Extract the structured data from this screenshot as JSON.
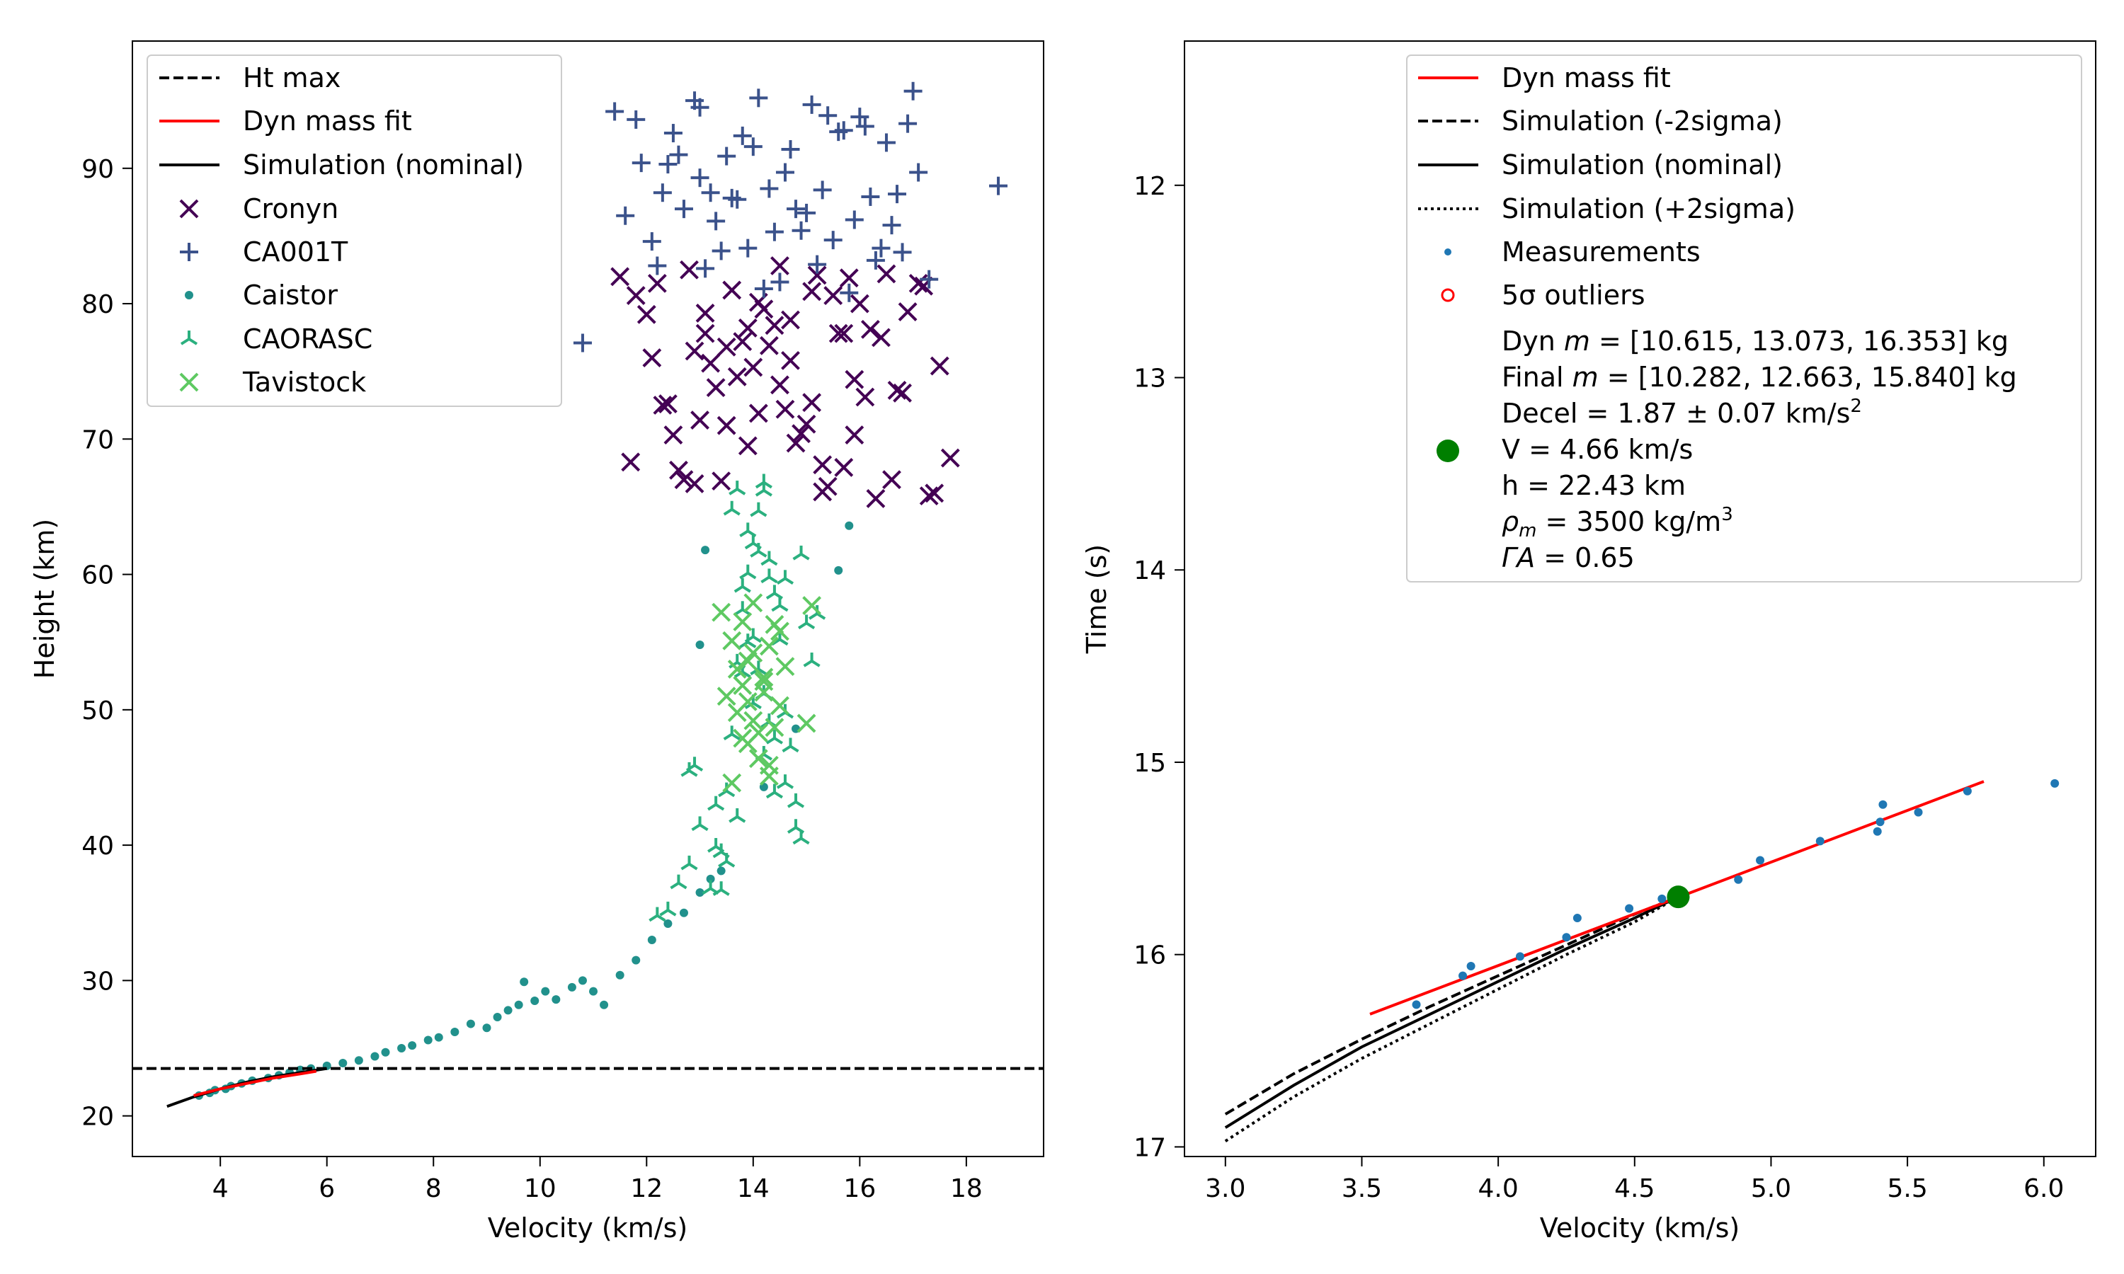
{
  "chart_data": [
    {
      "type": "scatter",
      "xlabel": "Velocity (km/s)",
      "ylabel": "Height (km)",
      "xlim": [
        2.35,
        19.45
      ],
      "ylim": [
        17.0,
        99.4
      ],
      "xticks": [
        4,
        6,
        8,
        10,
        12,
        14,
        16,
        18
      ],
      "yticks": [
        20,
        30,
        40,
        50,
        60,
        70,
        80,
        90
      ],
      "legend_position": "upper-left",
      "legend": [
        {
          "label": "Ht max",
          "kind": "dashed-line",
          "color": "#000000"
        },
        {
          "label": "Dyn mass fit",
          "kind": "line",
          "color": "#ff0000"
        },
        {
          "label": "Simulation (nominal)",
          "kind": "line",
          "color": "#000000"
        },
        {
          "label": "Cronyn",
          "kind": "x",
          "color": "#440154"
        },
        {
          "label": "CA001T",
          "kind": "plus",
          "color": "#3b528b"
        },
        {
          "label": "Caistor",
          "kind": "dot",
          "color": "#21918c"
        },
        {
          "label": "CAORASC",
          "kind": "tri",
          "color": "#2bb07f"
        },
        {
          "label": "Tavistock",
          "kind": "x",
          "color": "#5ec962"
        }
      ],
      "ht_max": 23.5,
      "dyn_mass_fit": {
        "x": [
          3.5,
          4.0,
          4.5,
          5.0,
          5.5,
          5.8
        ],
        "y": [
          21.5,
          22.0,
          22.4,
          22.8,
          23.1,
          23.3
        ]
      },
      "simulation_nominal": {
        "x": [
          3.0,
          3.5,
          4.0,
          4.5,
          5.0,
          5.5,
          6.0
        ],
        "y": [
          20.7,
          21.4,
          22.0,
          22.5,
          22.9,
          23.2,
          23.5
        ]
      },
      "series": [
        {
          "name": "Caistor",
          "x": [
            3.6,
            3.8,
            3.9,
            4.1,
            4.2,
            4.4,
            4.6,
            4.9,
            5.1,
            5.3,
            5.5,
            5.7,
            6.0,
            6.3,
            6.6,
            6.9,
            7.1,
            7.4,
            7.6,
            7.9,
            8.1,
            8.4,
            8.7,
            9.0,
            9.2,
            9.4,
            9.6,
            9.7,
            9.9,
            10.1,
            10.3,
            10.6,
            10.8,
            11.0,
            11.2,
            11.5,
            11.8,
            12.1,
            12.4,
            12.7,
            13.0,
            13.2,
            13.4,
            13.0,
            13.1,
            14.2,
            14.8,
            15.6,
            15.8
          ],
          "y": [
            21.5,
            21.7,
            21.9,
            22.0,
            22.2,
            22.4,
            22.6,
            22.8,
            23.0,
            23.2,
            23.4,
            23.5,
            23.7,
            23.9,
            24.1,
            24.4,
            24.7,
            25.0,
            25.2,
            25.6,
            25.8,
            26.2,
            26.8,
            26.5,
            27.3,
            27.8,
            28.2,
            29.9,
            28.5,
            29.2,
            28.6,
            29.5,
            30.0,
            29.2,
            28.2,
            30.4,
            31.5,
            33.0,
            34.2,
            35.0,
            36.5,
            37.5,
            38.1,
            54.8,
            61.8,
            44.3,
            48.6,
            60.3,
            63.6
          ]
        },
        {
          "name": "CAORASC",
          "x": [
            12.2,
            12.4,
            12.6,
            12.8,
            12.9,
            13.0,
            13.2,
            13.3,
            13.4,
            13.5,
            13.6,
            13.7,
            13.8,
            13.9,
            14.0,
            14.1,
            14.2,
            14.3,
            14.4,
            14.5,
            14.6,
            14.7,
            14.8,
            14.9,
            15.0,
            13.6,
            13.8,
            14.0,
            14.2,
            14.4,
            14.6,
            14.8,
            13.7,
            13.9,
            14.1,
            14.3,
            14.5,
            13.8,
            14.0,
            14.2,
            14.4,
            13.9,
            14.1,
            14.3,
            15.2,
            13.5,
            13.7,
            14.9,
            12.8,
            13.3,
            14.6,
            15.1,
            13.4,
            14.2
          ],
          "y": [
            34.8,
            35.2,
            37.2,
            38.6,
            45.9,
            41.5,
            36.8,
            43.0,
            39.5,
            44.0,
            48.2,
            53.5,
            57.4,
            60.1,
            62.3,
            64.7,
            66.2,
            61.1,
            58.6,
            55.2,
            49.8,
            47.3,
            43.2,
            40.5,
            56.4,
            64.8,
            59.1,
            55.4,
            51.2,
            47.9,
            44.6,
            41.3,
            66.3,
            63.2,
            61.7,
            59.8,
            57.7,
            52.8,
            50.5,
            46.7,
            43.9,
            55.0,
            53.0,
            49.1,
            57.1,
            38.8,
            42.1,
            61.5,
            45.5,
            39.9,
            59.7,
            53.6,
            36.7,
            66.8
          ]
        },
        {
          "name": "Tavistock",
          "x": [
            13.4,
            13.6,
            13.7,
            13.8,
            13.9,
            14.0,
            14.1,
            14.2,
            14.3,
            14.4,
            14.5,
            14.6,
            13.5,
            13.7,
            13.9,
            14.1,
            14.3,
            14.5,
            13.6,
            13.8,
            14.0,
            14.2,
            14.4,
            13.8,
            14.0,
            14.2,
            15.0,
            15.1,
            13.9,
            14.3
          ],
          "y": [
            57.2,
            55.1,
            53.0,
            51.8,
            50.6,
            49.2,
            48.3,
            52.4,
            54.7,
            56.3,
            55.8,
            53.2,
            51.0,
            49.8,
            47.5,
            46.4,
            45.1,
            50.3,
            44.6,
            47.9,
            54.2,
            52.1,
            48.7,
            56.5,
            57.9,
            51.3,
            49.0,
            57.7,
            53.6,
            45.9
          ]
        },
        {
          "name": "Cronyn",
          "x": [
            11.5,
            11.8,
            12.1,
            12.3,
            12.5,
            12.7,
            12.9,
            13.1,
            13.3,
            13.5,
            13.7,
            13.9,
            14.1,
            14.3,
            14.5,
            14.7,
            14.9,
            15.1,
            15.3,
            15.5,
            15.7,
            15.9,
            16.1,
            16.3,
            16.5,
            16.7,
            16.9,
            17.1,
            17.3,
            17.5,
            17.7,
            11.7,
            12.0,
            12.4,
            12.6,
            12.8,
            13.0,
            13.2,
            13.4,
            13.6,
            13.8,
            14.0,
            14.2,
            14.4,
            14.6,
            14.8,
            15.0,
            15.2,
            15.4,
            15.6,
            15.8,
            16.0,
            16.2,
            16.6,
            16.8,
            17.2,
            17.4,
            12.2,
            12.9,
            13.5,
            14.1,
            14.7,
            15.3,
            15.9,
            16.4,
            13.1,
            13.9,
            14.5,
            15.1,
            15.7
          ],
          "y": [
            82.0,
            80.6,
            76.0,
            72.5,
            70.3,
            67.0,
            76.5,
            79.3,
            73.8,
            71.0,
            74.6,
            78.2,
            80.1,
            76.9,
            74.0,
            78.8,
            70.4,
            72.7,
            68.1,
            80.6,
            77.8,
            70.3,
            73.1,
            65.6,
            82.2,
            73.6,
            79.4,
            81.5,
            65.8,
            75.4,
            68.6,
            68.3,
            79.2,
            72.6,
            67.7,
            82.5,
            71.4,
            75.6,
            66.9,
            81.0,
            77.2,
            75.3,
            79.6,
            78.4,
            72.2,
            69.7,
            71.1,
            82.1,
            66.5,
            77.8,
            81.9,
            80.0,
            78.1,
            67.0,
            73.4,
            81.3,
            66.0,
            81.5,
            66.7,
            76.8,
            71.9,
            75.8,
            66.1,
            74.4,
            77.5,
            77.8,
            69.5,
            82.8,
            80.9,
            67.9
          ]
        },
        {
          "name": "CA001T",
          "x": [
            10.8,
            11.4,
            11.6,
            11.9,
            12.1,
            12.3,
            12.5,
            12.7,
            12.9,
            13.0,
            13.1,
            13.3,
            13.5,
            13.7,
            13.9,
            14.1,
            14.3,
            14.5,
            14.7,
            14.9,
            15.1,
            15.3,
            15.5,
            15.7,
            15.9,
            16.1,
            16.3,
            16.5,
            16.7,
            16.9,
            17.1,
            17.3,
            18.6,
            11.8,
            12.2,
            12.6,
            13.0,
            13.4,
            13.8,
            14.2,
            14.6,
            15.0,
            15.4,
            15.8,
            16.2,
            16.6,
            17.0,
            12.4,
            13.2,
            14.0,
            14.8,
            15.6,
            16.4,
            13.6,
            14.4,
            15.2,
            16.0,
            16.8
          ],
          "y": [
            77.1,
            94.2,
            86.5,
            90.4,
            84.6,
            88.2,
            92.6,
            87.0,
            95.0,
            89.3,
            82.6,
            86.1,
            90.9,
            87.7,
            84.1,
            95.2,
            88.5,
            81.6,
            91.4,
            85.4,
            94.7,
            88.4,
            84.7,
            92.8,
            86.2,
            93.1,
            83.2,
            91.9,
            88.1,
            93.3,
            89.7,
            81.8,
            88.7,
            93.6,
            82.8,
            91.0,
            94.5,
            83.9,
            92.4,
            81.1,
            89.7,
            86.7,
            93.9,
            80.8,
            87.9,
            85.8,
            95.7,
            90.3,
            88.2,
            91.6,
            87.0,
            92.7,
            84.1,
            87.8,
            85.3,
            82.9,
            93.8,
            83.8
          ]
        }
      ]
    },
    {
      "type": "line",
      "xlabel": "Velocity (km/s)",
      "ylabel": "Time (s)",
      "xlim": [
        2.85,
        6.19
      ],
      "ylim": [
        17.05,
        11.25
      ],
      "y_inverted": true,
      "xticks": [
        3.0,
        3.5,
        4.0,
        4.5,
        5.0,
        5.5,
        6.0
      ],
      "xtick_labels": [
        "3.0",
        "3.5",
        "4.0",
        "4.5",
        "5.0",
        "5.5",
        "6.0"
      ],
      "yticks": [
        12,
        13,
        14,
        15,
        16,
        17
      ],
      "legend_position": "upper-right",
      "legend": [
        {
          "label": "Dyn mass fit",
          "kind": "line",
          "color": "#ff0000"
        },
        {
          "label": "Simulation (-2sigma)",
          "kind": "dashed-line",
          "color": "#000000"
        },
        {
          "label": "Simulation (nominal)",
          "kind": "line",
          "color": "#000000"
        },
        {
          "label": "Simulation (+2sigma)",
          "kind": "dotted-line",
          "color": "#000000"
        },
        {
          "label": "Measurements",
          "kind": "dot",
          "color": "#1f77b4"
        },
        {
          "label": "5σ outliers",
          "kind": "ring",
          "color": "#ff0000"
        }
      ],
      "fit_info": {
        "color": "#007f00",
        "v": 4.66,
        "h": 22.43,
        "line1_pre": "Dyn ",
        "line1_var": "m",
        "line1_post": " = [10.615, 13.073, 16.353] kg",
        "line2_pre": "Final ",
        "line2_var": "m",
        "line2_post": " = [10.282, 12.663, 15.840] kg",
        "line3_pre": "Decel = 1.87 ± 0.07 km/s",
        "line3_sup": "2",
        "line4": "V = 4.66 km/s",
        "line5": "h = 22.43 km",
        "line6_var": "ρ",
        "line6_sub": "m",
        "line6_post": " = 3500 kg/m",
        "line6_sup": "3",
        "line7_var": "ΓA",
        "line7_post": " = 0.65"
      },
      "fit_point": {
        "x": 4.66,
        "y": 15.7
      },
      "dyn_mass_fit": {
        "x": [
          3.53,
          5.78
        ],
        "y": [
          16.31,
          15.1
        ]
      },
      "simulation_minus2sigma": {
        "x": [
          3.0,
          3.25,
          3.5,
          3.75,
          4.0,
          4.25,
          4.5,
          4.66
        ],
        "y": [
          16.83,
          16.62,
          16.44,
          16.27,
          16.11,
          15.95,
          15.79,
          15.7
        ]
      },
      "simulation_nominal": {
        "x": [
          3.0,
          3.25,
          3.5,
          3.75,
          4.0,
          4.25,
          4.5,
          4.66
        ],
        "y": [
          16.9,
          16.68,
          16.48,
          16.31,
          16.14,
          15.97,
          15.81,
          15.7
        ]
      },
      "simulation_plus2sigma": {
        "x": [
          3.0,
          3.25,
          3.5,
          3.75,
          4.0,
          4.25,
          4.5,
          4.66
        ],
        "y": [
          16.97,
          16.74,
          16.54,
          16.36,
          16.18,
          16.0,
          15.83,
          15.7
        ]
      },
      "measurements": {
        "x": [
          3.7,
          3.87,
          3.9,
          4.08,
          4.25,
          4.29,
          4.48,
          4.6,
          4.88,
          4.96,
          5.18,
          5.39,
          5.4,
          5.41,
          5.54,
          5.72,
          6.04
        ],
        "y": [
          16.26,
          16.11,
          16.06,
          16.01,
          15.91,
          15.81,
          15.76,
          15.71,
          15.61,
          15.51,
          15.41,
          15.36,
          15.31,
          15.22,
          15.26,
          15.15,
          15.11
        ]
      }
    }
  ]
}
